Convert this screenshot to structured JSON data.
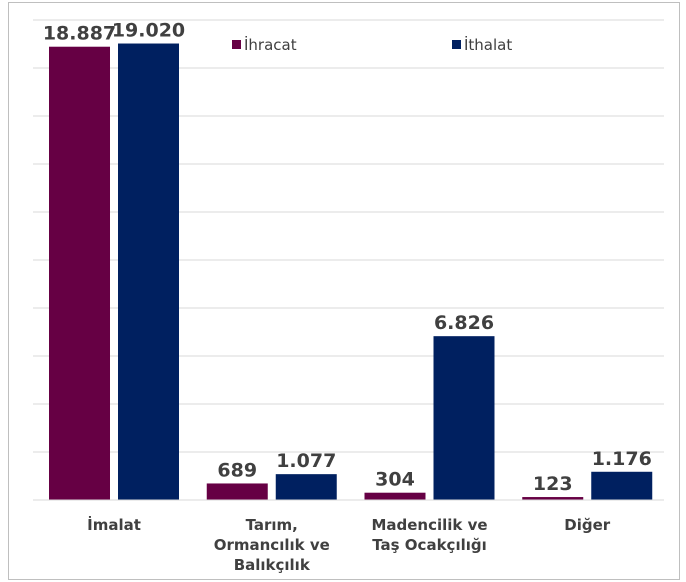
{
  "chart_data": {
    "type": "bar",
    "categories": [
      "İmalat",
      "Tarım, Ormancılık ve Balıkçılık",
      "Madencilik ve Taş Ocakçılığı",
      "Diğer"
    ],
    "category_lines": [
      [
        "İmalat"
      ],
      [
        "Tarım,",
        "Ormancılık ve",
        "Balıkçılık"
      ],
      [
        "Madencilik ve",
        "Taş Ocakçılığı"
      ],
      [
        "Diğer"
      ]
    ],
    "series": [
      {
        "name": "İhracat",
        "color": "#660044",
        "values": [
          18887,
          689,
          304,
          123
        ],
        "labels": [
          "18.887",
          "689",
          "304",
          "123"
        ]
      },
      {
        "name": "İthalat",
        "color": "#002060",
        "values": [
          19020,
          1077,
          6826,
          1176
        ],
        "labels": [
          "19.020",
          "1.077",
          "6.826",
          "1.176"
        ]
      }
    ],
    "ylim": [
      0,
      20000
    ],
    "y_gridline_step": 2000,
    "grid": true,
    "legend_position": "top",
    "gridline_color": "#d9d9d9",
    "axis_color": "#d9d9d9"
  }
}
